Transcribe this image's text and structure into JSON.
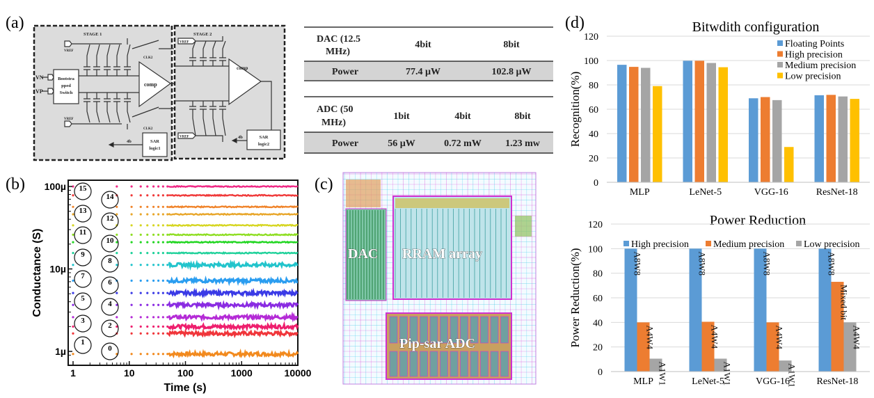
{
  "panels": {
    "a": "(a)",
    "b": "(b)",
    "c": "(c)",
    "d": "(d)"
  },
  "circuit": {
    "stage1": "STAGE 1",
    "stage2": "STAGE 2",
    "vref": "VREF",
    "vn": "VN",
    "vp": "VP",
    "bootstrap_line1": "Bootstra",
    "bootstrap_line2": "pped",
    "bootstrap_line3": "Switch",
    "comp": "comp",
    "clk2": "CLK2",
    "sar1_line1": "SAR",
    "sar1_line2": "logic1",
    "sar2_line1": "SAR",
    "sar2_line2": "logic2",
    "bits": "4b"
  },
  "tables": {
    "dac": {
      "header_line1": "DAC  (12.5",
      "header_line2": "MHz)",
      "columns": [
        "4bit",
        "8bit"
      ],
      "row_label": "Power",
      "values": [
        "77.4 µW",
        "102.8 µW"
      ]
    },
    "adc": {
      "header_line1": "ADC (50",
      "header_line2": "MHz)",
      "columns": [
        "1bit",
        "4bit",
        "8bit"
      ],
      "row_label": "Power",
      "values": [
        "56 µW",
        "0.72 mW",
        "1.23 mw"
      ]
    }
  },
  "layout": {
    "dac": "DAC",
    "rram": "RRAM array",
    "adc": "Pip-sar ADC"
  },
  "chart_data": [
    {
      "type": "line",
      "title": "",
      "xlabel": "Time (s)",
      "ylabel": "Conductance (S)",
      "xscale": "log",
      "yscale": "log",
      "xlim": [
        1,
        10000
      ],
      "ylim": [
        0.8,
        115
      ],
      "x_ticks": [
        "1",
        "10",
        "100",
        "1000",
        "10000"
      ],
      "y_ticks": [
        "1µ",
        "10µ",
        "100µ"
      ],
      "y_units": "µS",
      "series": [
        {
          "name": "0",
          "value": 0.93,
          "color": "#f28a1e"
        },
        {
          "name": "1",
          "value": 1.65,
          "color": "#f0353a"
        },
        {
          "name": "2",
          "value": 2.0,
          "color": "#ee1f6e"
        },
        {
          "name": "3",
          "value": 2.6,
          "color": "#b42bd6"
        },
        {
          "name": "4",
          "value": 3.66,
          "color": "#8a2be2"
        },
        {
          "name": "5",
          "value": 5.1,
          "color": "#3a3ae6"
        },
        {
          "name": "6",
          "value": 7.2,
          "color": "#2a9df0"
        },
        {
          "name": "7",
          "value": 11.2,
          "color": "#22c4cc"
        },
        {
          "name": "8",
          "value": 15.6,
          "color": "#1fd19a"
        },
        {
          "name": "9",
          "value": 21.1,
          "color": "#22d622"
        },
        {
          "name": "10",
          "value": 26,
          "color": "#8ede22"
        },
        {
          "name": "11",
          "value": 33.8,
          "color": "#d6d622"
        },
        {
          "name": "12",
          "value": 46,
          "color": "#e8a62a"
        },
        {
          "name": "13",
          "value": 56.6,
          "color": "#f0842a"
        },
        {
          "name": "14",
          "value": 78,
          "color": "#f03a3a"
        },
        {
          "name": "15",
          "value": 100,
          "color": "#f02a86"
        }
      ]
    },
    {
      "type": "bar",
      "title": "Bitwdith configuration",
      "xlabel": "",
      "ylabel": "Recognition(%)",
      "ylim": [
        0,
        120
      ],
      "y_ticks": [
        "0",
        "20",
        "40",
        "60",
        "80",
        "100",
        "120"
      ],
      "legend": "top-right",
      "categories": [
        "MLP",
        "LeNet-5",
        "VGG-16",
        "ResNet-18"
      ],
      "series": [
        {
          "name": "Floating Points",
          "color": "#5b9bd5",
          "values": [
            96.5,
            99.8,
            69,
            71.5
          ]
        },
        {
          "name": "High precision",
          "color": "#ed7d31",
          "values": [
            94.8,
            99.8,
            70,
            71.8
          ]
        },
        {
          "name": "Medium precision",
          "color": "#a5a5a5",
          "values": [
            94,
            98,
            67.5,
            70.5
          ]
        },
        {
          "name": "Low precision",
          "color": "#ffc000",
          "values": [
            79,
            94.5,
            29,
            68.5
          ]
        }
      ]
    },
    {
      "type": "bar",
      "title": "Power Reduction",
      "xlabel": "",
      "ylabel": "Power Reduction(%)",
      "ylim": [
        0,
        120
      ],
      "y_ticks": [
        "0",
        "20",
        "40",
        "60",
        "80",
        "100",
        "120"
      ],
      "legend": "top",
      "categories": [
        "MLP",
        "LeNet-5",
        "VGG-16",
        "ResNet-18"
      ],
      "series": [
        {
          "name": "High precision",
          "color": "#5b9bd5",
          "values": [
            100,
            100,
            100,
            100
          ],
          "labels": [
            "A8W8",
            "A8W8",
            "A8W8",
            "A8W8"
          ]
        },
        {
          "name": "Medium precision",
          "color": "#ed7d31",
          "values": [
            40,
            40.5,
            40,
            73
          ],
          "labels": [
            "A4W4",
            "A4W4",
            "A4W4",
            "Mixed bit"
          ]
        },
        {
          "name": "Low precision",
          "color": "#a5a5a5",
          "values": [
            10.5,
            10.5,
            9,
            40
          ],
          "labels": [
            "A1W1",
            "A1W1",
            "A1W1",
            "A4W4"
          ]
        }
      ]
    }
  ]
}
